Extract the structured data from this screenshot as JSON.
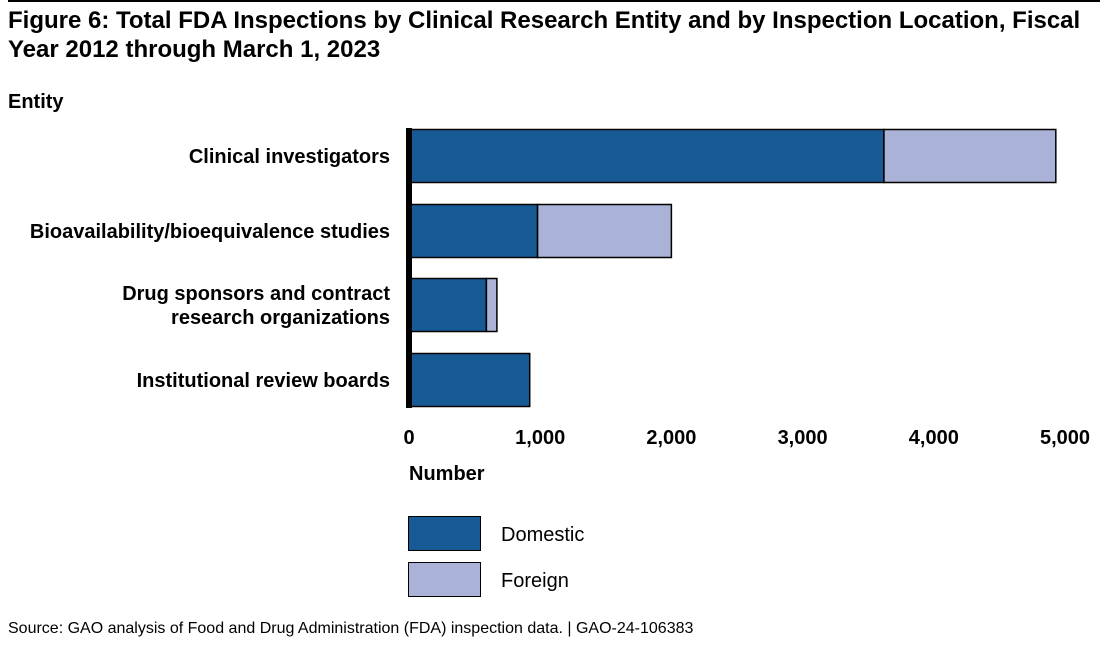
{
  "title": "Figure 6: Total FDA Inspections by Clinical Research Entity and by Inspection Location, Fiscal Year 2012 through March 1, 2023",
  "source": "Source: GAO analysis of Food and Drug Administration (FDA) inspection data.  |  GAO-24-106383",
  "colors": {
    "domestic": "#175a96",
    "foreign": "#aab3d7"
  },
  "chart_data": {
    "type": "bar",
    "orientation": "horizontal",
    "stacked": true,
    "title": "Figure 6: Total FDA Inspections by Clinical Research Entity and by Inspection Location, Fiscal Year 2012 through March 1, 2023",
    "ylabel": "Entity",
    "xlabel": "Number",
    "categories": [
      [
        "Clinical investigators"
      ],
      [
        "Bioavailability/bioequivalence studies"
      ],
      [
        "Drug sponsors and contract",
        "research organizations"
      ],
      [
        "Institutional review boards"
      ]
    ],
    "series": [
      {
        "name": "Domestic",
        "values": [
          3620,
          980,
          590,
          920
        ]
      },
      {
        "name": "Foreign",
        "values": [
          1310,
          1020,
          80,
          0
        ]
      }
    ],
    "xlim": [
      0,
      5000
    ],
    "xticks": [
      0,
      1000,
      2000,
      3000,
      4000,
      5000
    ],
    "xtick_labels": [
      "0",
      "1,000",
      "2,000",
      "3,000",
      "4,000",
      "5,000"
    ],
    "grid": false,
    "legend": "bottom"
  }
}
